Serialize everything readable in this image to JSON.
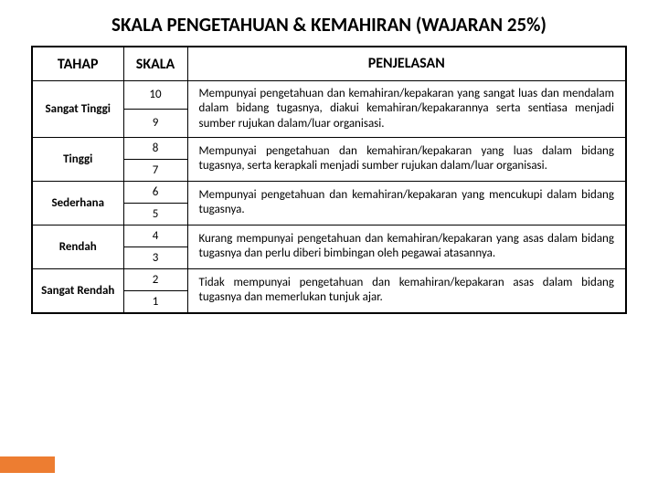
{
  "title": {
    "text": "SKALA PENGETAHUAN & KEMAHIRAN (WAJARAN 25%)",
    "fontsize": 21,
    "color": "#000000"
  },
  "table": {
    "border_width": 670,
    "header": {
      "tahap": "TAHAP",
      "skala": "SKALA",
      "penjelasan": "PENJELASAN",
      "fontsize": 16
    },
    "body_fontsize": 13,
    "rows": [
      {
        "tahap": "Sangat Tinggi",
        "skala_top": "10",
        "skala_bot": "9",
        "penjelasan": "Mempunyai pengetahuan dan kemahiran/kepakaran yang sangat luas dan mendalam dalam bidang tugasnya, diakui kemahiran/kepakarannya serta sentiasa menjadi sumber rujukan dalam/luar organisasi."
      },
      {
        "tahap": "Tinggi",
        "skala_top": "8",
        "skala_bot": "7",
        "penjelasan": "Mempunyai pengetahuan dan kemahiran/kepakaran yang luas dalam bidang tugasnya, serta kerapkali menjadi sumber rujukan dalam/luar organisasi."
      },
      {
        "tahap": "Sederhana",
        "skala_top": "6",
        "skala_bot": "5",
        "penjelasan": "Mempunyai pengetahuan dan kemahiran/kepakaran yang mencukupi dalam bidang tugasnya."
      },
      {
        "tahap": "Rendah",
        "skala_top": "4",
        "skala_bot": "3",
        "penjelasan": "Kurang mempunyai pengetahuan dan kemahiran/kepakaran yang asas dalam bidang tugasnya dan perlu diberi bimbingan oleh pegawai atasannya."
      },
      {
        "tahap": "Sangat Rendah",
        "skala_top": "2",
        "skala_bot": "1",
        "penjelasan": "Tidak mempunyai pengetahuan dan kemahiran/kepakaran asas dalam bidang tugasnya dan memerlukan tunjuk ajar."
      }
    ]
  },
  "accent_bar": {
    "color": "#ed7d31"
  },
  "colors": {
    "page_bg": "#ffffff",
    "text": "#000000",
    "border": "#000000"
  }
}
